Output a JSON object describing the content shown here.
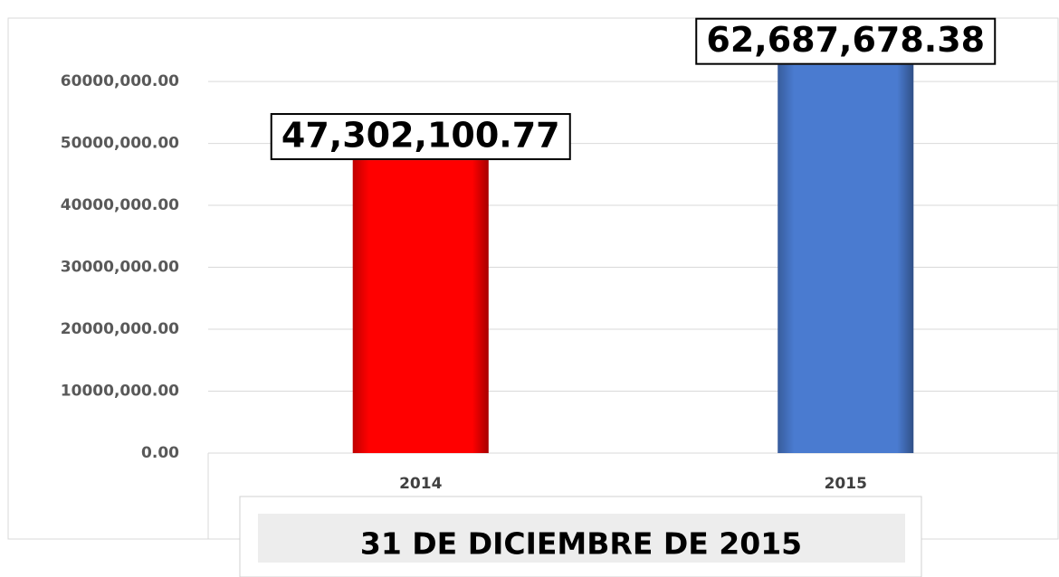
{
  "chart_data": {
    "type": "bar",
    "categories": [
      "2014",
      "2015"
    ],
    "values": [
      47302100.77,
      62687678.38
    ],
    "value_labels": [
      "47,302,100.77",
      "62,687,678.38"
    ],
    "colors": [
      "#ff0000",
      "#4a7bd0"
    ],
    "ylim": [
      0,
      66000000
    ],
    "yticks": [
      {
        "value": 0,
        "label": "0.00"
      },
      {
        "value": 10000000,
        "label": "10000,000.00"
      },
      {
        "value": 20000000,
        "label": "20000,000.00"
      },
      {
        "value": 30000000,
        "label": "30000,000.00"
      },
      {
        "value": 40000000,
        "label": "40000,000.00"
      },
      {
        "value": 50000000,
        "label": "50000,000.00"
      },
      {
        "value": 60000000,
        "label": "60000,000.00"
      }
    ],
    "grid": true,
    "annotation": "31 DE DICIEMBRE DE 2015"
  }
}
